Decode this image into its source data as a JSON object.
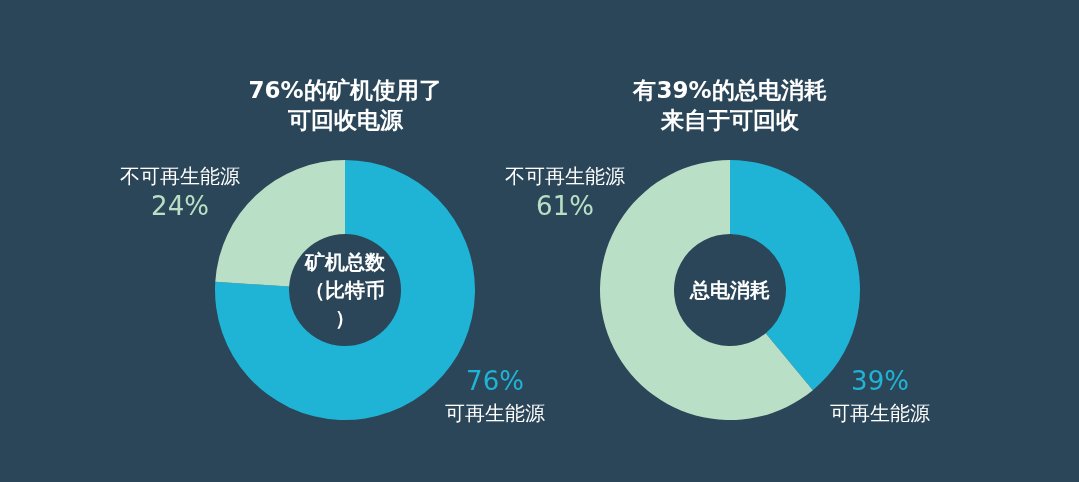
{
  "chart_data": [
    {
      "type": "donut",
      "title": "76%的矿机使用了可回收电源",
      "categories": [
        "可再生能源",
        "不可再生能源"
      ],
      "values": [
        76,
        24
      ],
      "colors": [
        "#1fb3d6",
        "#b9e0c6"
      ],
      "value_labels": [
        "76%",
        "24%"
      ],
      "annotations": [
        "矿机总数（比特币）"
      ]
    },
    {
      "type": "donut",
      "title": "有39%的总电消耗来自于可回收",
      "categories": [
        "可再生能源",
        "不可再生能源"
      ],
      "values": [
        39,
        61
      ],
      "colors": [
        "#1fb3d6",
        "#b9e0c6"
      ],
      "value_labels": [
        "39%",
        "61%"
      ],
      "annotations": [
        "总电消耗"
      ]
    }
  ]
}
